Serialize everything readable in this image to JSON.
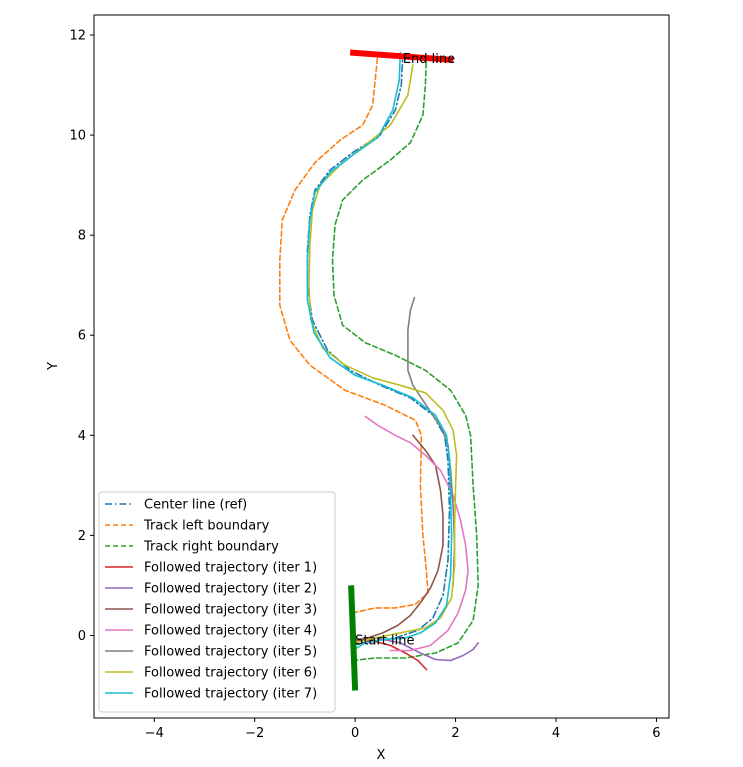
{
  "chart_data": {
    "type": "line",
    "title": "",
    "xlabel": "X",
    "ylabel": "Y",
    "xlim": [
      -5.2,
      6.25
    ],
    "ylim": [
      -1.65,
      12.4
    ],
    "xticks": [
      -4,
      -2,
      0,
      2,
      4,
      6
    ],
    "yticks": [
      0,
      2,
      4,
      6,
      8,
      10,
      12
    ],
    "xtick_labels": [
      "−4",
      "−2",
      "0",
      "2",
      "4",
      "6"
    ],
    "ytick_labels": [
      "0",
      "2",
      "4",
      "6",
      "8",
      "10",
      "12"
    ],
    "grid": false,
    "legend_position": "lower-left",
    "annotations": [
      {
        "text": "Start line",
        "x": 0.0,
        "y": -0.1
      },
      {
        "text": "End line",
        "x": 0.95,
        "y": 11.52
      }
    ],
    "start_line": {
      "color": "#008000",
      "points": [
        [
          -0.08,
          1.0
        ],
        [
          0.0,
          -1.1
        ]
      ]
    },
    "end_line": {
      "color": "#ff0000",
      "points": [
        [
          -0.1,
          11.65
        ],
        [
          1.95,
          11.5
        ]
      ]
    },
    "series": [
      {
        "name": "Center line (ref)",
        "color": "#1f77b4",
        "dash": "dashdot",
        "points": [
          [
            -0.05,
            -0.2
          ],
          [
            0.3,
            -0.12
          ],
          [
            0.8,
            -0.05
          ],
          [
            1.25,
            0.1
          ],
          [
            1.55,
            0.35
          ],
          [
            1.75,
            0.8
          ],
          [
            1.85,
            1.5
          ],
          [
            1.88,
            2.5
          ],
          [
            1.85,
            3.5
          ],
          [
            1.78,
            4.0
          ],
          [
            1.55,
            4.4
          ],
          [
            1.1,
            4.75
          ],
          [
            0.5,
            5.0
          ],
          [
            -0.1,
            5.3
          ],
          [
            -0.55,
            5.7
          ],
          [
            -0.85,
            6.3
          ],
          [
            -0.95,
            7.0
          ],
          [
            -0.95,
            7.7
          ],
          [
            -0.9,
            8.4
          ],
          [
            -0.8,
            8.9
          ],
          [
            -0.5,
            9.3
          ],
          [
            -0.05,
            9.65
          ],
          [
            0.5,
            10.0
          ],
          [
            0.8,
            10.5
          ],
          [
            0.92,
            11.0
          ],
          [
            0.95,
            11.6
          ]
        ]
      },
      {
        "name": "Track left boundary",
        "color": "#ff7f0e",
        "dash": "dashed",
        "points": [
          [
            -0.05,
            0.45
          ],
          [
            0.4,
            0.55
          ],
          [
            0.8,
            0.55
          ],
          [
            1.2,
            0.62
          ],
          [
            1.45,
            0.85
          ],
          [
            1.42,
            1.3
          ],
          [
            1.35,
            2.0
          ],
          [
            1.3,
            3.0
          ],
          [
            1.32,
            4.0
          ],
          [
            1.2,
            4.3
          ],
          [
            0.6,
            4.6
          ],
          [
            -0.2,
            4.9
          ],
          [
            -0.9,
            5.4
          ],
          [
            -1.3,
            5.9
          ],
          [
            -1.5,
            6.6
          ],
          [
            -1.5,
            7.5
          ],
          [
            -1.45,
            8.3
          ],
          [
            -1.2,
            8.9
          ],
          [
            -0.8,
            9.45
          ],
          [
            -0.3,
            9.9
          ],
          [
            0.15,
            10.2
          ],
          [
            0.35,
            10.6
          ],
          [
            0.4,
            11.1
          ],
          [
            0.45,
            11.6
          ]
        ]
      },
      {
        "name": "Track right boundary",
        "color": "#2ca02c",
        "dash": "dashed",
        "points": [
          [
            -0.05,
            -0.5
          ],
          [
            0.4,
            -0.45
          ],
          [
            1.0,
            -0.45
          ],
          [
            1.6,
            -0.35
          ],
          [
            2.05,
            -0.15
          ],
          [
            2.35,
            0.3
          ],
          [
            2.45,
            1.0
          ],
          [
            2.42,
            2.0
          ],
          [
            2.35,
            3.0
          ],
          [
            2.3,
            4.0
          ],
          [
            2.2,
            4.4
          ],
          [
            1.9,
            4.9
          ],
          [
            1.4,
            5.3
          ],
          [
            0.8,
            5.6
          ],
          [
            0.2,
            5.85
          ],
          [
            -0.25,
            6.2
          ],
          [
            -0.42,
            6.8
          ],
          [
            -0.45,
            7.5
          ],
          [
            -0.4,
            8.2
          ],
          [
            -0.25,
            8.7
          ],
          [
            0.15,
            9.1
          ],
          [
            0.7,
            9.5
          ],
          [
            1.1,
            9.85
          ],
          [
            1.35,
            10.4
          ],
          [
            1.4,
            11.0
          ],
          [
            1.42,
            11.6
          ]
        ]
      },
      {
        "name": "Followed trajectory (iter 1)",
        "color": "#d62728",
        "dash": "solid",
        "points": [
          [
            -0.05,
            -0.1
          ],
          [
            0.3,
            -0.1
          ],
          [
            0.7,
            -0.2
          ],
          [
            1.0,
            -0.35
          ],
          [
            1.25,
            -0.5
          ],
          [
            1.42,
            -0.68
          ]
        ]
      },
      {
        "name": "Followed trajectory (iter 2)",
        "color": "#9467bd",
        "dash": "solid",
        "points": [
          [
            -0.05,
            -0.1
          ],
          [
            0.4,
            -0.05
          ],
          [
            0.9,
            -0.15
          ],
          [
            1.3,
            -0.35
          ],
          [
            1.6,
            -0.48
          ],
          [
            1.9,
            -0.5
          ],
          [
            2.15,
            -0.4
          ],
          [
            2.35,
            -0.28
          ],
          [
            2.45,
            -0.15
          ]
        ]
      },
      {
        "name": "Followed trajectory (iter 3)",
        "color": "#8c564b",
        "dash": "solid",
        "points": [
          [
            -0.05,
            -0.1
          ],
          [
            0.25,
            -0.05
          ],
          [
            0.55,
            0.05
          ],
          [
            0.85,
            0.2
          ],
          [
            1.1,
            0.4
          ],
          [
            1.3,
            0.65
          ],
          [
            1.5,
            0.95
          ],
          [
            1.65,
            1.3
          ],
          [
            1.75,
            1.8
          ],
          [
            1.75,
            2.4
          ],
          [
            1.7,
            2.9
          ],
          [
            1.6,
            3.4
          ],
          [
            1.4,
            3.7
          ],
          [
            1.15,
            4.0
          ]
        ]
      },
      {
        "name": "Followed trajectory (iter 4)",
        "color": "#e377c2",
        "dash": "solid",
        "points": [
          [
            0.7,
            -0.3
          ],
          [
            1.1,
            -0.3
          ],
          [
            1.5,
            -0.2
          ],
          [
            1.85,
            0.1
          ],
          [
            2.05,
            0.45
          ],
          [
            2.2,
            0.9
          ],
          [
            2.25,
            1.3
          ],
          [
            2.2,
            1.8
          ],
          [
            2.1,
            2.3
          ],
          [
            1.95,
            2.8
          ],
          [
            1.7,
            3.3
          ],
          [
            1.4,
            3.6
          ],
          [
            1.1,
            3.85
          ],
          [
            0.8,
            4.0
          ],
          [
            0.45,
            4.2
          ],
          [
            0.2,
            4.38
          ]
        ]
      },
      {
        "name": "Followed trajectory (iter 5)",
        "color": "#7f7f7f",
        "dash": "solid",
        "points": [
          [
            1.95,
            1.0
          ],
          [
            1.98,
            1.8
          ],
          [
            1.95,
            2.6
          ],
          [
            1.9,
            3.3
          ],
          [
            1.85,
            3.8
          ],
          [
            1.72,
            4.15
          ],
          [
            1.55,
            4.4
          ],
          [
            1.35,
            4.7
          ],
          [
            1.15,
            5.0
          ],
          [
            1.05,
            5.3
          ],
          [
            1.05,
            5.7
          ],
          [
            1.05,
            6.1
          ],
          [
            1.1,
            6.5
          ],
          [
            1.18,
            6.75
          ]
        ]
      },
      {
        "name": "Followed trajectory (iter 6)",
        "color": "#bcbd22",
        "dash": "solid",
        "points": [
          [
            0.0,
            -0.15
          ],
          [
            0.4,
            -0.05
          ],
          [
            0.9,
            0.05
          ],
          [
            1.4,
            0.15
          ],
          [
            1.7,
            0.35
          ],
          [
            1.92,
            0.75
          ],
          [
            1.98,
            1.4
          ],
          [
            1.98,
            2.2
          ],
          [
            2.0,
            3.0
          ],
          [
            2.02,
            3.6
          ],
          [
            1.95,
            4.1
          ],
          [
            1.75,
            4.5
          ],
          [
            1.4,
            4.85
          ],
          [
            0.9,
            5.0
          ],
          [
            0.35,
            5.15
          ],
          [
            -0.2,
            5.4
          ],
          [
            -0.65,
            5.75
          ],
          [
            -0.88,
            6.3
          ],
          [
            -0.92,
            7.0
          ],
          [
            -0.9,
            7.8
          ],
          [
            -0.85,
            8.5
          ],
          [
            -0.7,
            9.0
          ],
          [
            -0.3,
            9.4
          ],
          [
            0.2,
            9.8
          ],
          [
            0.7,
            10.2
          ],
          [
            1.05,
            10.8
          ],
          [
            1.15,
            11.4
          ]
        ]
      },
      {
        "name": "Followed trajectory (iter 7)",
        "color": "#17becf",
        "dash": "solid",
        "points": [
          [
            -0.05,
            -0.3
          ],
          [
            0.2,
            -0.15
          ],
          [
            0.6,
            -0.08
          ],
          [
            1.0,
            -0.05
          ],
          [
            1.3,
            0.05
          ],
          [
            1.6,
            0.25
          ],
          [
            1.82,
            0.6
          ],
          [
            1.9,
            1.2
          ],
          [
            1.92,
            2.0
          ],
          [
            1.9,
            2.8
          ],
          [
            1.88,
            3.5
          ],
          [
            1.82,
            4.0
          ],
          [
            1.6,
            4.4
          ],
          [
            1.15,
            4.75
          ],
          [
            0.55,
            5.0
          ],
          [
            0.0,
            5.2
          ],
          [
            -0.5,
            5.55
          ],
          [
            -0.82,
            6.05
          ],
          [
            -0.95,
            6.7
          ],
          [
            -0.95,
            7.5
          ],
          [
            -0.9,
            8.3
          ],
          [
            -0.8,
            8.85
          ],
          [
            -0.5,
            9.25
          ],
          [
            -0.05,
            9.6
          ],
          [
            0.45,
            9.95
          ],
          [
            0.75,
            10.5
          ],
          [
            0.88,
            11.1
          ],
          [
            0.9,
            11.65
          ]
        ]
      }
    ]
  }
}
